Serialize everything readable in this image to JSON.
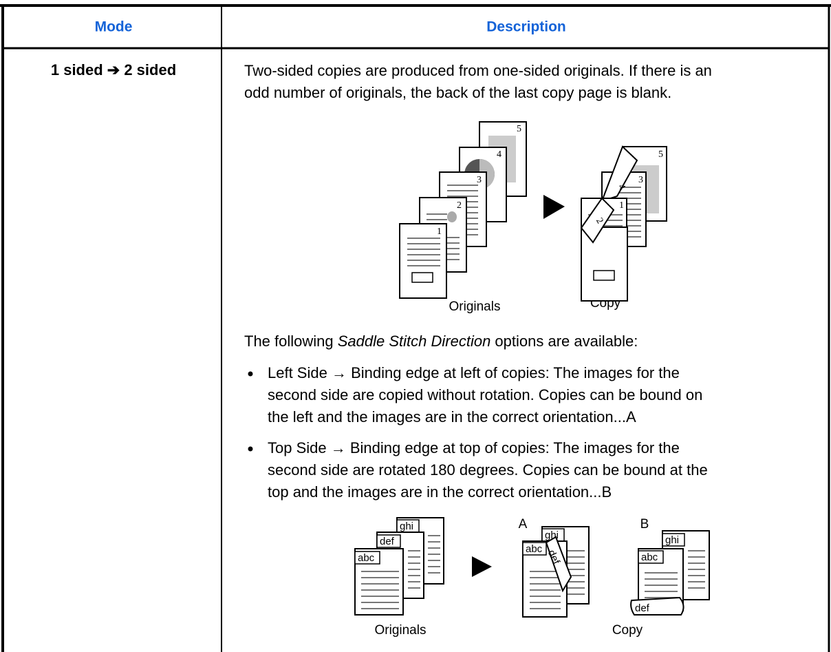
{
  "table": {
    "header": [
      "Mode",
      "Description"
    ],
    "rows": [
      {
        "mode": "1 sided ➔ 2 sided",
        "description": [
          "Two-sided copies are produced from one-sided originals. If there is an",
          "odd number of originals, the back of the last copy page is blank."
        ],
        "figure1": {
          "original_numbers": [
            "1",
            "2",
            "3",
            "4",
            "5"
          ],
          "copy_numbers": [
            "1",
            "2",
            "3",
            "4",
            "5"
          ],
          "originals_label": "Originals",
          "copy_label": "Copy"
        },
        "options_intro": [
          "The following ",
          "Saddle Stitch Direction",
          " options are available:"
        ],
        "bullets": [
          [
            "Left Side → Binding edge at left of copies: The images for the",
            "second side are copied without rotation. Copies can be bound on",
            "the left and the images are in the correct orientation...A"
          ],
          [
            "Top Side → Binding edge at top of copies: The images for the",
            "second side are rotated 180 degrees. Copies can be bound at the",
            "top and the images are in the correct orientation...B"
          ]
        ],
        "figure2": {
          "original_texts": [
            "abc",
            "def",
            "ghi"
          ],
          "copy_a_label": "A",
          "copy_a_texts": [
            "abc",
            "def",
            "ghi"
          ],
          "copy_b_label": "B",
          "copy_b_texts": [
            "abc",
            "def",
            "ghi"
          ],
          "originals_label": "Originals",
          "copy_label": "Copy"
        }
      }
    ]
  }
}
